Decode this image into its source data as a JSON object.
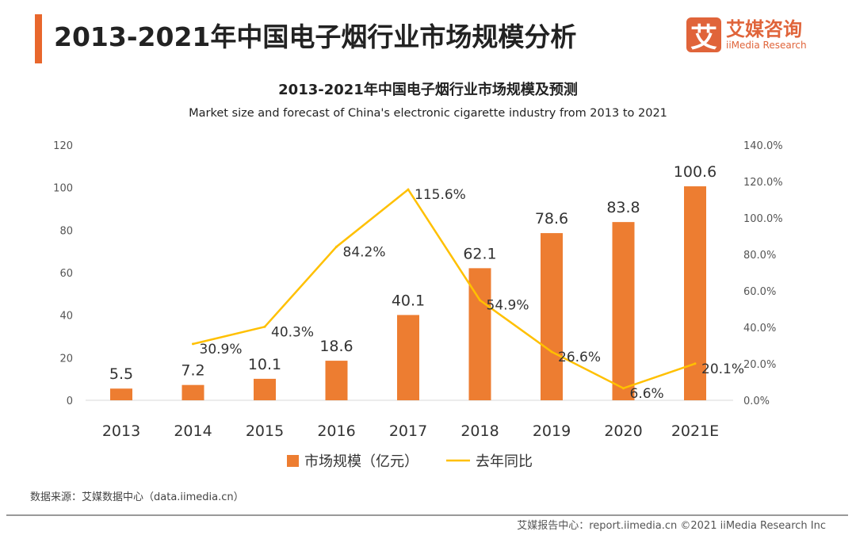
{
  "header": {
    "title": "2013-2021年中国电子烟行业市场规模分析",
    "logo_cn": "艾媒咨询",
    "logo_en": "iiMedia Research",
    "logo_mark": "艾"
  },
  "colors": {
    "accent": "#e8672c",
    "bar": "#ed7d31",
    "line": "#ffc000"
  },
  "chart_data": {
    "type": "bar+line",
    "title": "2013-2021年中国电子烟行业市场规模及预测",
    "subtitle": "Market size and forecast of China's electronic cigarette industry from 2013 to 2021",
    "categories": [
      "2013",
      "2014",
      "2015",
      "2016",
      "2017",
      "2018",
      "2019",
      "2020",
      "2021E"
    ],
    "series": [
      {
        "name": "市场规模（亿元）",
        "type": "bar",
        "axis": "left",
        "values": [
          5.5,
          7.2,
          10.1,
          18.6,
          40.1,
          62.1,
          78.6,
          83.8,
          100.6
        ],
        "labels": [
          "5.5",
          "7.2",
          "10.1",
          "18.6",
          "40.1",
          "62.1",
          "78.6",
          "83.8",
          "100.6"
        ]
      },
      {
        "name": "去年同比",
        "type": "line",
        "axis": "right",
        "values": [
          null,
          30.9,
          40.3,
          84.2,
          115.6,
          54.9,
          26.6,
          6.6,
          20.1
        ],
        "labels": [
          "",
          "30.9%",
          "40.3%",
          "84.2%",
          "115.6%",
          "54.9%",
          "26.6%",
          "6.6%",
          "20.1%"
        ]
      }
    ],
    "left_axis": {
      "range": [
        0,
        120
      ],
      "ticks": [
        "0",
        "20",
        "40",
        "60",
        "80",
        "100",
        "120"
      ]
    },
    "right_axis": {
      "range": [
        0,
        140
      ],
      "ticks": [
        "0.0%",
        "20.0%",
        "40.0%",
        "60.0%",
        "80.0%",
        "100.0%",
        "120.0%",
        "140.0%"
      ]
    },
    "grid": false,
    "legend": "bottom"
  },
  "footer": {
    "source": "数据来源：艾媒数据中心（data.iimedia.cn）",
    "copyright": "艾媒报告中心：report.iimedia.cn  ©2021  iiMedia Research  Inc"
  }
}
